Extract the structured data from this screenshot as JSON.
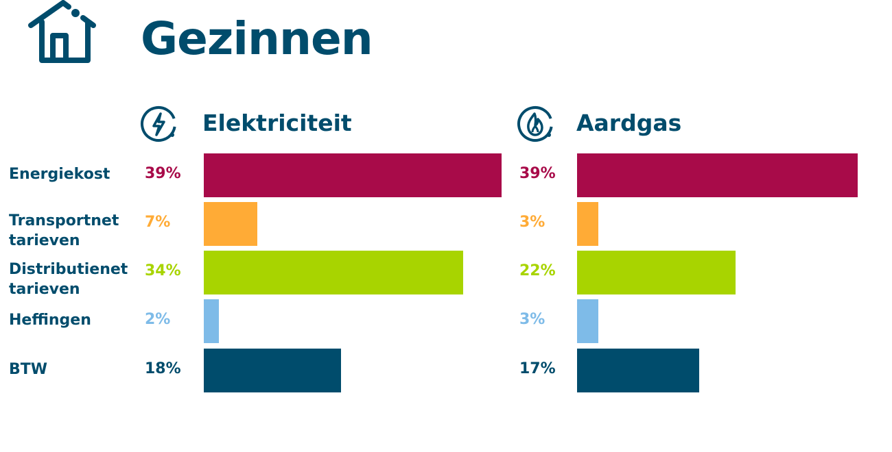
{
  "title": "Gezinnen",
  "colors": [
    "#a80b49",
    "#ffab36",
    "#a8d400",
    "#7ebbe8",
    "#004c6c"
  ],
  "chart_data": {
    "type": "bar",
    "orientation": "horizontal",
    "categories": [
      "Energiekost",
      "Transportnet tarieven",
      "Distributienet tarieven",
      "Heffingen",
      "BTW"
    ],
    "series": [
      {
        "name": "Elektriciteit",
        "icon": "lightning-icon",
        "values": [
          39,
          7,
          34,
          2,
          18
        ],
        "labels": [
          "39%",
          "7%",
          "34%",
          "2%",
          "18%"
        ]
      },
      {
        "name": "Aardgas",
        "icon": "flame-icon",
        "values": [
          39,
          3,
          22,
          3,
          17
        ],
        "labels": [
          "39%",
          "3%",
          "22%",
          "3%",
          "17%"
        ]
      }
    ],
    "unit": "%",
    "grid": false
  }
}
